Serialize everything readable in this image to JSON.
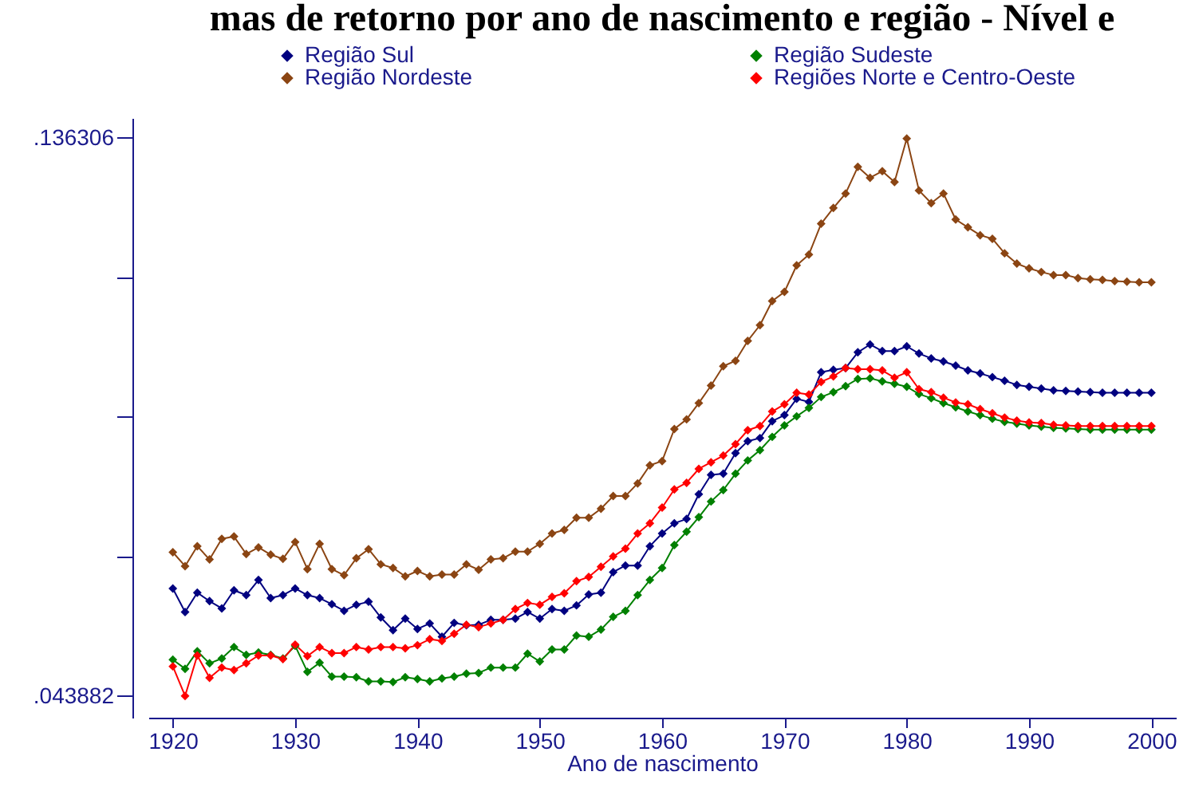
{
  "chart_data": {
    "type": "line",
    "title": "mas de retorno por ano de nascimento e região - Nível e",
    "xlabel": "Ano de nascimento",
    "x": [
      1920,
      1921,
      1922,
      1923,
      1924,
      1925,
      1926,
      1927,
      1928,
      1929,
      1930,
      1931,
      1932,
      1933,
      1934,
      1935,
      1936,
      1937,
      1938,
      1939,
      1940,
      1941,
      1942,
      1943,
      1944,
      1945,
      1946,
      1947,
      1948,
      1949,
      1950,
      1951,
      1952,
      1953,
      1954,
      1955,
      1956,
      1957,
      1958,
      1959,
      1960,
      1961,
      1962,
      1963,
      1964,
      1965,
      1966,
      1967,
      1968,
      1969,
      1970,
      1971,
      1972,
      1973,
      1974,
      1975,
      1976,
      1977,
      1978,
      1979,
      1980,
      1981,
      1982,
      1983,
      1984,
      1985,
      1986,
      1987,
      1988,
      1989,
      1990,
      1991,
      1992,
      1993,
      1994,
      1995,
      1996,
      1997,
      1998,
      1999,
      2000
    ],
    "series": [
      {
        "name": "Região Sul",
        "color": "#000080",
        "values": [
          0.0617,
          0.0578,
          0.061,
          0.0596,
          0.0584,
          0.0614,
          0.0606,
          0.0631,
          0.0601,
          0.0606,
          0.0617,
          0.0606,
          0.0601,
          0.0591,
          0.058,
          0.059,
          0.0595,
          0.0569,
          0.0548,
          0.0567,
          0.055,
          0.0559,
          0.0537,
          0.056,
          0.0556,
          0.0557,
          0.0565,
          0.0565,
          0.0567,
          0.0578,
          0.0567,
          0.0583,
          0.058,
          0.0589,
          0.0607,
          0.061,
          0.0644,
          0.0655,
          0.0655,
          0.0687,
          0.0708,
          0.0725,
          0.0732,
          0.0773,
          0.0805,
          0.0807,
          0.0841,
          0.0861,
          0.0866,
          0.0894,
          0.0904,
          0.0931,
          0.0926,
          0.0975,
          0.0979,
          0.0982,
          0.1008,
          0.1021,
          0.101,
          0.101,
          0.1018,
          0.1006,
          0.0998,
          0.0993,
          0.0986,
          0.0978,
          0.0973,
          0.0967,
          0.0961,
          0.0954,
          0.0951,
          0.0948,
          0.0945,
          0.0944,
          0.0943,
          0.0942,
          0.0941,
          0.0941,
          0.0941,
          0.0941,
          0.0941
        ]
      },
      {
        "name": "Região Sudeste",
        "color": "#008000",
        "values": [
          0.0499,
          0.0484,
          0.0513,
          0.0493,
          0.0501,
          0.052,
          0.0507,
          0.0511,
          0.0507,
          0.0501,
          0.0522,
          0.0479,
          0.0494,
          0.0471,
          0.0471,
          0.047,
          0.0463,
          0.0463,
          0.0462,
          0.047,
          0.0467,
          0.0463,
          0.0468,
          0.0471,
          0.0476,
          0.0477,
          0.0486,
          0.0486,
          0.0486,
          0.0509,
          0.0496,
          0.0516,
          0.0516,
          0.0539,
          0.0537,
          0.0549,
          0.057,
          0.058,
          0.0606,
          0.0631,
          0.0651,
          0.0689,
          0.0711,
          0.0735,
          0.0761,
          0.078,
          0.0807,
          0.0829,
          0.0846,
          0.0868,
          0.0887,
          0.0902,
          0.0916,
          0.0934,
          0.0942,
          0.0952,
          0.0964,
          0.0965,
          0.096,
          0.0956,
          0.0951,
          0.0939,
          0.0932,
          0.0924,
          0.0917,
          0.091,
          0.0904,
          0.0898,
          0.0893,
          0.089,
          0.0887,
          0.0885,
          0.0883,
          0.0882,
          0.0881,
          0.088,
          0.088,
          0.088,
          0.088,
          0.088,
          0.088
        ]
      },
      {
        "name": "Região Nordeste",
        "color": "#8b4513",
        "values": [
          0.0677,
          0.0654,
          0.0687,
          0.0665,
          0.0699,
          0.0703,
          0.0674,
          0.0685,
          0.0673,
          0.0666,
          0.0694,
          0.0649,
          0.0691,
          0.0649,
          0.0639,
          0.0667,
          0.0682,
          0.0657,
          0.0651,
          0.0637,
          0.0646,
          0.0637,
          0.064,
          0.064,
          0.0657,
          0.0648,
          0.0665,
          0.0667,
          0.0678,
          0.0678,
          0.0691,
          0.0708,
          0.0714,
          0.0734,
          0.0734,
          0.0749,
          0.077,
          0.077,
          0.0791,
          0.0821,
          0.0828,
          0.0881,
          0.0897,
          0.0924,
          0.0953,
          0.0985,
          0.0994,
          0.1027,
          0.1053,
          0.1093,
          0.1108,
          0.1152,
          0.117,
          0.1221,
          0.1247,
          0.1271,
          0.1315,
          0.1297,
          0.1308,
          0.129,
          0.1362,
          0.1276,
          0.1255,
          0.1271,
          0.1228,
          0.1215,
          0.1202,
          0.1196,
          0.1172,
          0.1155,
          0.1147,
          0.1141,
          0.1136,
          0.1136,
          0.1131,
          0.1129,
          0.1128,
          0.1126,
          0.1125,
          0.1124,
          0.1124
        ]
      },
      {
        "name": "Regiões Norte e Centro-Oeste",
        "color": "#ff0000",
        "values": [
          0.0488,
          0.0439,
          0.0506,
          0.0469,
          0.0486,
          0.0482,
          0.0493,
          0.0506,
          0.0506,
          0.05,
          0.0524,
          0.0505,
          0.052,
          0.051,
          0.051,
          0.052,
          0.0516,
          0.052,
          0.052,
          0.0518,
          0.0523,
          0.0533,
          0.053,
          0.0542,
          0.0557,
          0.0553,
          0.0559,
          0.0565,
          0.0583,
          0.0593,
          0.059,
          0.0603,
          0.0609,
          0.0629,
          0.0636,
          0.0653,
          0.067,
          0.0683,
          0.0708,
          0.0725,
          0.0751,
          0.0781,
          0.0792,
          0.0815,
          0.0826,
          0.0837,
          0.0856,
          0.0879,
          0.0886,
          0.091,
          0.0922,
          0.0941,
          0.0938,
          0.0959,
          0.0968,
          0.0982,
          0.098,
          0.098,
          0.0978,
          0.0966,
          0.0975,
          0.0947,
          0.0942,
          0.0933,
          0.0925,
          0.0922,
          0.0914,
          0.0907,
          0.09,
          0.0895,
          0.0892,
          0.0891,
          0.0888,
          0.0887,
          0.0886,
          0.0886,
          0.0886,
          0.0886,
          0.0886,
          0.0886,
          0.0886
        ]
      }
    ],
    "xlim": [
      1918,
      2002
    ],
    "xticks": [
      1920,
      1930,
      1940,
      1950,
      1960,
      1970,
      1980,
      1990,
      2000
    ],
    "ylim": [
      0.0403,
      0.1396
    ],
    "yticks": [
      {
        "value": 0.043882,
        "label": ".043882"
      },
      {
        "value": 0.066988,
        "label": null
      },
      {
        "value": 0.090094,
        "label": null
      },
      {
        "value": 0.1132,
        "label": null
      },
      {
        "value": 0.136306,
        "label": ".136306"
      }
    ],
    "legend": "top",
    "grid": false,
    "marker": "diamond",
    "line_style": "solid"
  }
}
